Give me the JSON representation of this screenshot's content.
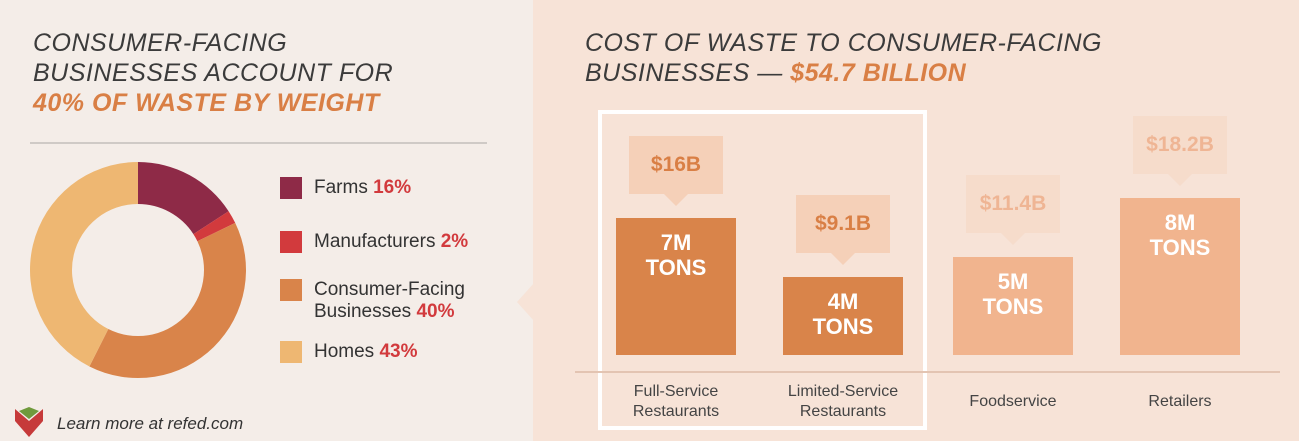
{
  "chart_data": [
    {
      "type": "pie",
      "donut": true,
      "title": "CONSUMER-FACING BUSINESSES ACCOUNT FOR",
      "title_highlight": "40% OF WASTE BY WEIGHT",
      "categories": [
        "Farms",
        "Manufacturers",
        "Consumer-Facing Businesses",
        "Homes"
      ],
      "values": [
        16,
        2,
        40,
        43
      ],
      "value_labels": [
        "16%",
        "2%",
        "40%",
        "43%"
      ],
      "colors": [
        "#8e2a47",
        "#d23a3d",
        "#d9844a",
        "#eeb772"
      ]
    },
    {
      "type": "bar",
      "title": "COST OF WASTE TO CONSUMER-FACING BUSINESSES —",
      "title_highlight": "$54.7 BILLION",
      "categories": [
        "Full-Service Restaurants",
        "Limited-Service Restaurants",
        "Foodservice",
        "Retailers"
      ],
      "values": [
        7,
        4,
        5,
        8
      ],
      "value_labels": [
        "7M TONS",
        "4M TONS",
        "5M TONS",
        "8M TONS"
      ],
      "costs": [
        16,
        9.1,
        11.4,
        18.2
      ],
      "cost_labels": [
        "$16B",
        "$9.1B",
        "$11.4B",
        "$18.2B"
      ],
      "colors": [
        "#d9844a",
        "#d9844a",
        "#f1b48e",
        "#f1b48e"
      ],
      "cost_colors": [
        "#f5d0b8",
        "#f5d0b8",
        "#f6dccb",
        "#f6dccb"
      ],
      "cost_text_colors": [
        "#d97f45",
        "#d97f45",
        "#efb594",
        "#efb594"
      ]
    }
  ],
  "footer": {
    "link_text": "Learn more at refed.com"
  }
}
